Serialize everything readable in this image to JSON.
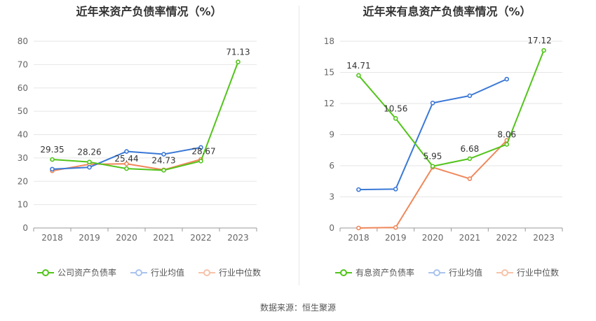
{
  "charts": [
    {
      "title": "近年来资产负债率情况（%）",
      "legend": [
        {
          "label": "公司资产负债率",
          "color": "#52c41a"
        },
        {
          "label": "行业均值",
          "color": "#3a78d6"
        },
        {
          "label": "行业中位数",
          "color": "#f0875a"
        }
      ]
    },
    {
      "title": "近年来有息资产负债率情况（%）",
      "legend": [
        {
          "label": "有息资产负债率",
          "color": "#52c41a"
        },
        {
          "label": "行业均值",
          "color": "#3a78d6"
        },
        {
          "label": "行业中位数",
          "color": "#f0875a"
        }
      ]
    }
  ],
  "source": "数据来源：恒生聚源",
  "chart_data": [
    {
      "type": "line",
      "title": "近年来资产负债率情况（%）",
      "categories": [
        "2018",
        "2019",
        "2020",
        "2021",
        "2022",
        "2023"
      ],
      "ylim": [
        0,
        80
      ],
      "yticks": [
        0,
        10,
        20,
        30,
        40,
        50,
        60,
        70,
        80
      ],
      "grid": true,
      "legend_position": "bottom",
      "series": [
        {
          "name": "公司资产负债率",
          "color": "#52c41a",
          "values": [
            29.35,
            28.26,
            25.44,
            24.73,
            28.67,
            71.13
          ],
          "labels": [
            "29.35",
            "28.26",
            "25.44",
            "24.73",
            "28.67",
            "71.13"
          ]
        },
        {
          "name": "行业均值",
          "color": "#3a78d6",
          "values": [
            25.2,
            26.0,
            32.8,
            31.6,
            34.5,
            null
          ]
        },
        {
          "name": "行业中位数",
          "color": "#f0875a",
          "values": [
            24.5,
            27.3,
            27.5,
            24.9,
            29.4,
            null
          ]
        }
      ]
    },
    {
      "type": "line",
      "title": "近年来有息资产负债率情况（%）",
      "categories": [
        "2018",
        "2019",
        "2020",
        "2021",
        "2022",
        "2023"
      ],
      "ylim": [
        0,
        18
      ],
      "yticks": [
        0,
        3,
        6,
        9,
        12,
        15,
        18
      ],
      "grid": true,
      "legend_position": "bottom",
      "series": [
        {
          "name": "有息资产负债率",
          "color": "#52c41a",
          "values": [
            14.71,
            10.56,
            5.95,
            6.68,
            8.06,
            17.12
          ],
          "labels": [
            "14.71",
            "10.56",
            "5.95",
            "6.68",
            "8.06",
            "17.12"
          ]
        },
        {
          "name": "行业均值",
          "color": "#3a78d6",
          "values": [
            3.7,
            3.75,
            12.05,
            12.75,
            14.35,
            null
          ]
        },
        {
          "name": "行业中位数",
          "color": "#f0875a",
          "values": [
            0.0,
            0.05,
            5.85,
            4.75,
            8.45,
            null
          ]
        }
      ]
    }
  ]
}
